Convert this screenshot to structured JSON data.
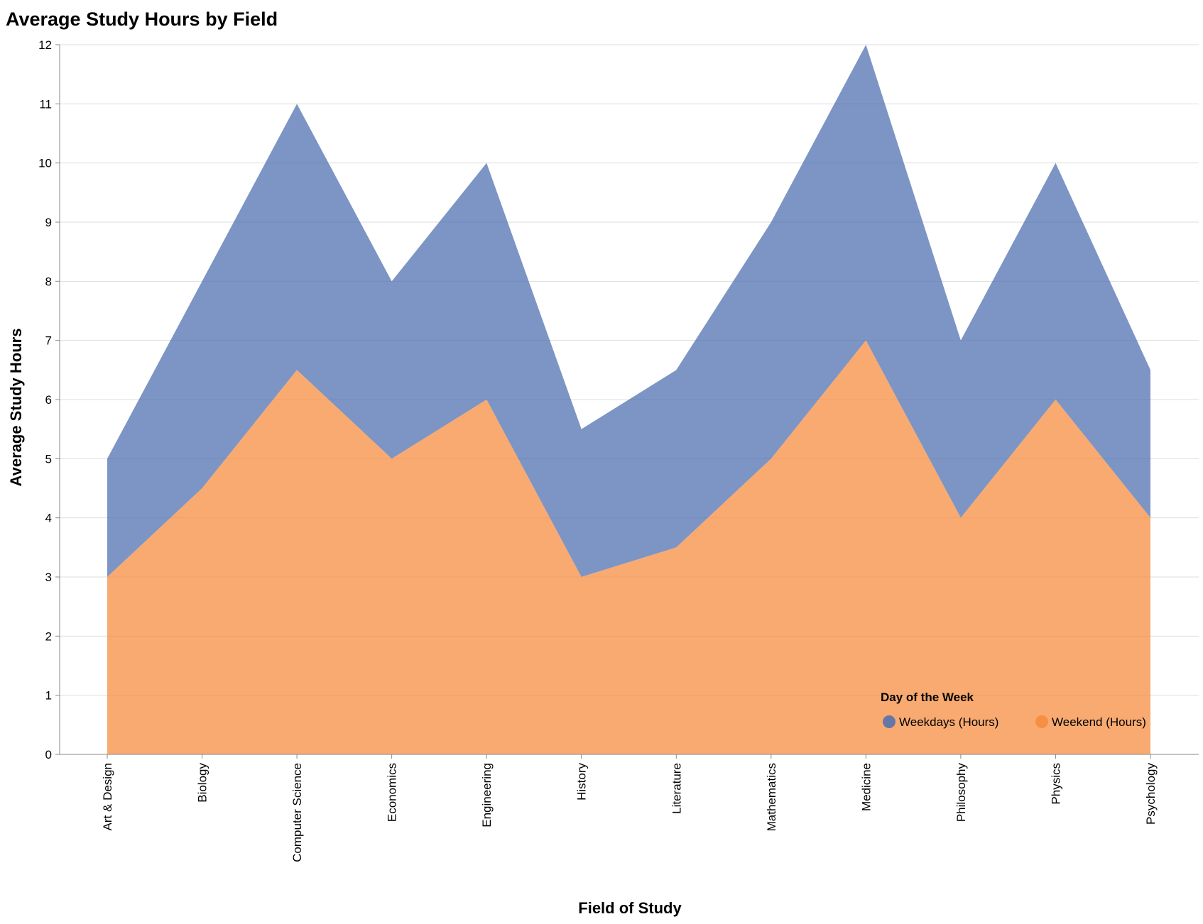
{
  "chart_data": {
    "type": "area",
    "title": "Average Study Hours by Field",
    "xlabel": "Field of Study",
    "ylabel": "Average Study Hours",
    "ylim": [
      0,
      12
    ],
    "yticks": [
      0,
      1,
      2,
      3,
      4,
      5,
      6,
      7,
      8,
      9,
      10,
      11,
      12
    ],
    "grid": true,
    "categories": [
      "Art & Design",
      "Biology",
      "Computer Science",
      "Economics",
      "Engineering",
      "History",
      "Literature",
      "Mathematics",
      "Medicine",
      "Philosophy",
      "Physics",
      "Psychology"
    ],
    "series": [
      {
        "name": "Weekdays (Hours)",
        "color": "#4c6db0",
        "values": [
          5,
          8,
          11,
          8,
          10,
          5.5,
          6.5,
          9,
          12,
          7,
          10,
          6.5
        ]
      },
      {
        "name": "Weekend (Hours)",
        "color": "#f58b3c",
        "values": [
          3,
          4.5,
          6.5,
          5,
          6,
          3,
          3.5,
          5,
          7,
          4,
          6,
          4
        ]
      }
    ],
    "legend": {
      "title": "Day of the Week",
      "placement": "bottom-right"
    }
  }
}
